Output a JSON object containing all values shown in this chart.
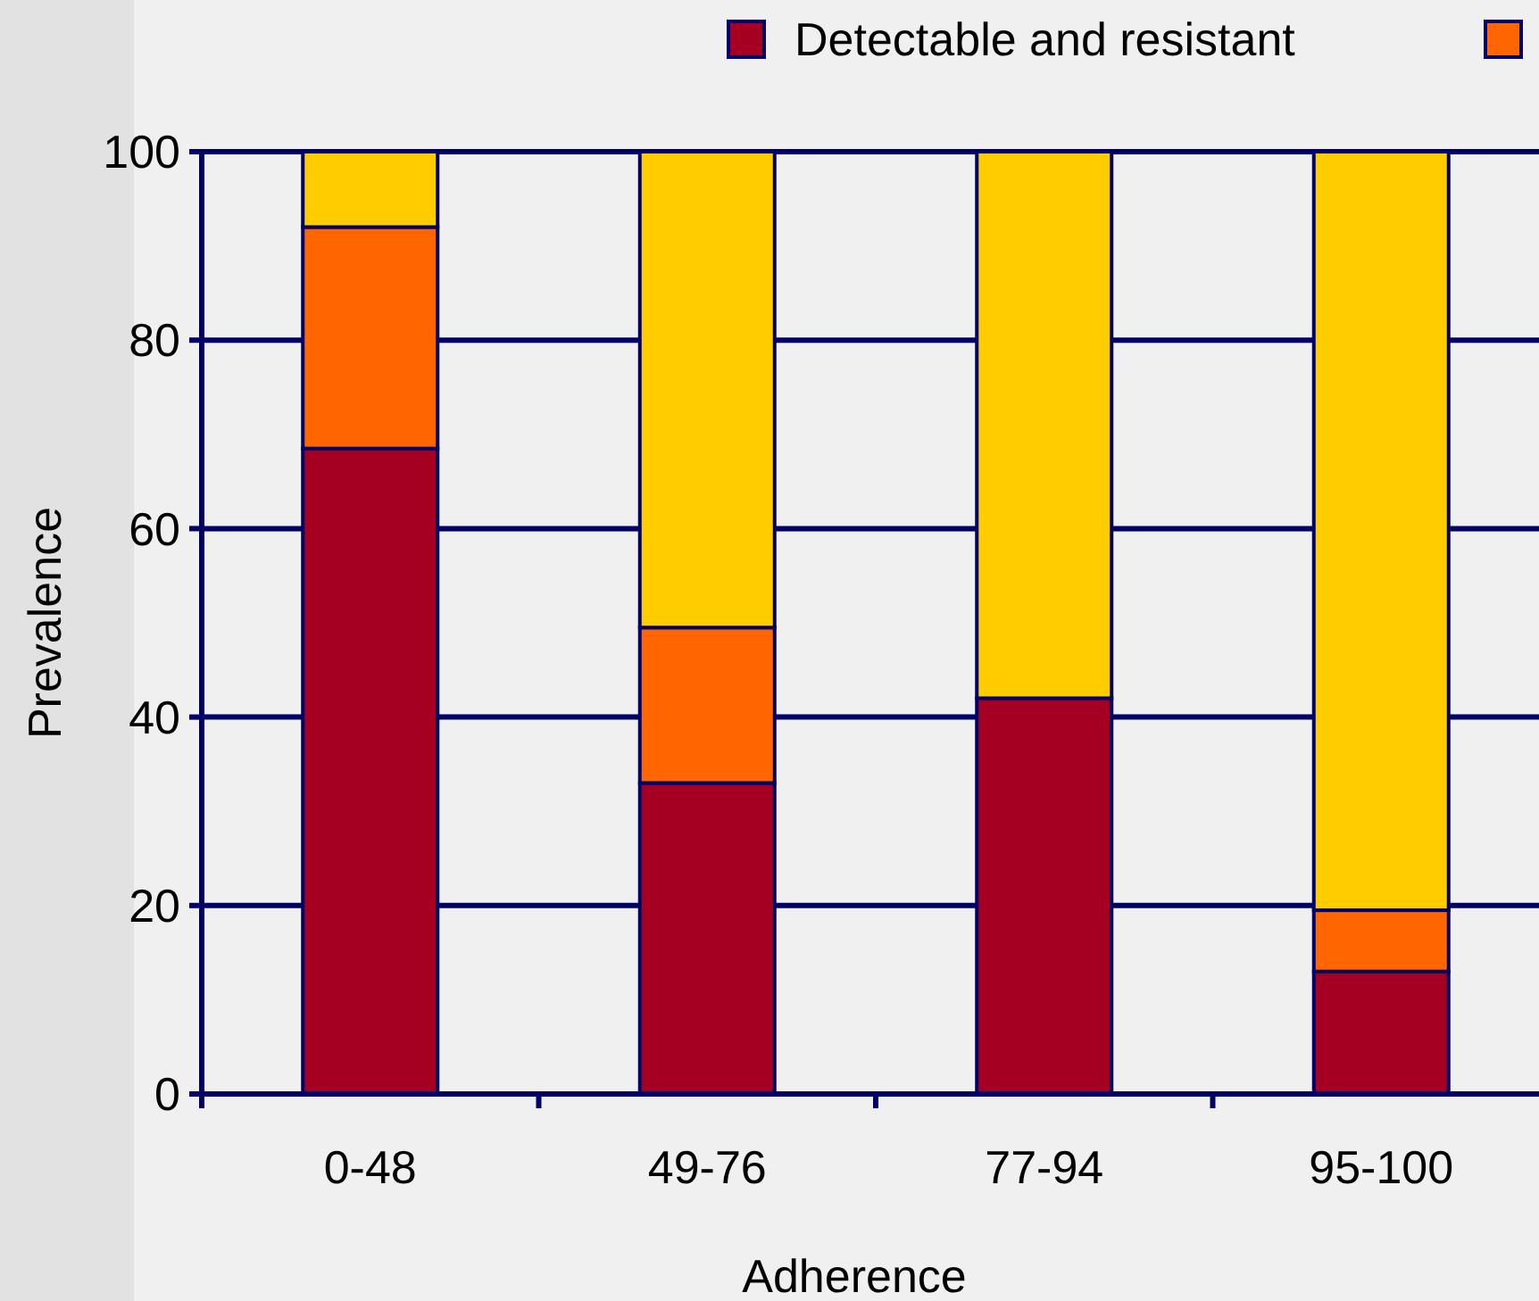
{
  "chart_data": {
    "type": "bar",
    "stacked": true,
    "xlabel": "Adherence",
    "ylabel": "Prevalence",
    "categories": [
      "0-48",
      "49-76",
      "77-94",
      "95-100"
    ],
    "series": [
      {
        "name": "Detectable and resistant",
        "color": "#a50021",
        "values": [
          68.5,
          33,
          42,
          13
        ]
      },
      {
        "color": "#ff6600",
        "values": [
          23.5,
          16.5,
          0,
          6.5
        ]
      },
      {
        "color": "#ffcc00",
        "values": [
          8,
          50.5,
          58,
          80.5
        ]
      }
    ],
    "ylim": [
      0,
      100
    ],
    "yticks": [
      0,
      20,
      40,
      60,
      80,
      100
    ],
    "grid": "y",
    "legend": "top right"
  }
}
